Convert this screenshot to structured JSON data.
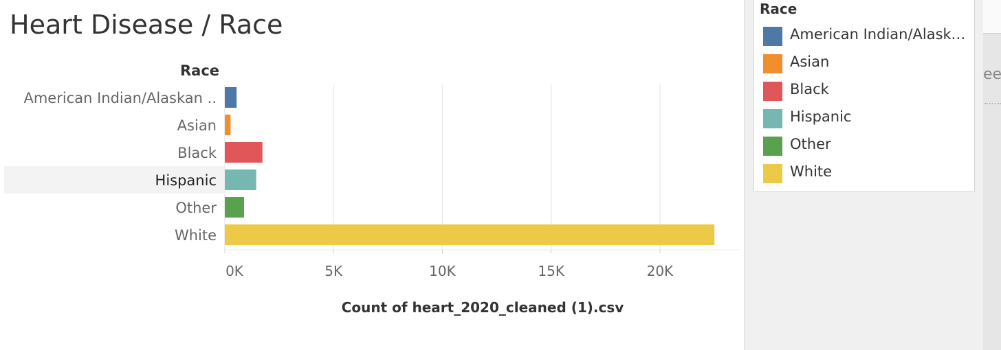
{
  "title": "Heart Disease / Race",
  "rows_header": "Race",
  "axis_title": "Count of heart_2020_cleaned (1).csv",
  "selected_category": "Hispanic",
  "chart_data": {
    "type": "bar",
    "orientation": "horizontal",
    "categories": [
      "American Indian/Alaskan ..",
      "Asian",
      "Black",
      "Hispanic",
      "Other",
      "White"
    ],
    "values": [
      542,
      266,
      1729,
      1443,
      886,
      22507
    ],
    "colors": [
      "#4e79a7",
      "#f28e2b",
      "#e15759",
      "#76b7b2",
      "#59a14f",
      "#edc948"
    ],
    "xlabel": "Count of heart_2020_cleaned (1).csv",
    "ylabel": "Race",
    "xlim": [
      0,
      23700
    ],
    "ticks": [
      0,
      5000,
      10000,
      15000,
      20000
    ],
    "tick_labels": [
      "0K",
      "5K",
      "10K",
      "15K",
      "20K"
    ],
    "grid": true
  },
  "legend": {
    "title": "Race",
    "items": [
      {
        "label": "American Indian/Alaskan Native",
        "color": "#4e79a7"
      },
      {
        "label": "Asian",
        "color": "#f28e2b"
      },
      {
        "label": "Black",
        "color": "#e15759"
      },
      {
        "label": "Hispanic",
        "color": "#76b7b2"
      },
      {
        "label": "Other",
        "color": "#59a14f"
      },
      {
        "label": "White",
        "color": "#edc948"
      }
    ]
  },
  "side_strip": {
    "fragment_text": "ee"
  }
}
